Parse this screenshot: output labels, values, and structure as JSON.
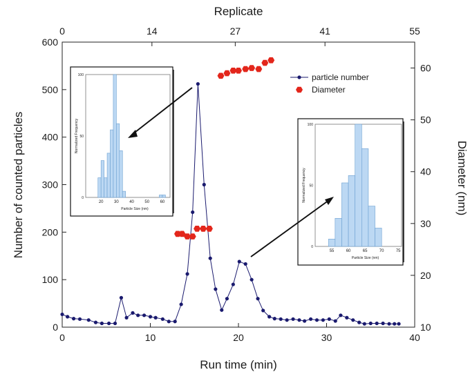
{
  "chart_data": {
    "type": "scatter",
    "xlabel": "Run time (min)",
    "ylabel": "Number of counted particles",
    "x2label": "Replicate",
    "y2label": "Diameter (nm)",
    "xlim": [
      0,
      40
    ],
    "ylim": [
      0,
      600
    ],
    "y2lim": [
      10,
      65
    ],
    "x2lim": [
      0,
      55
    ],
    "x_ticks": [
      0,
      10,
      20,
      30,
      40
    ],
    "y_ticks": [
      0,
      100,
      200,
      300,
      400,
      500,
      600
    ],
    "y2_ticks": [
      10,
      20,
      30,
      40,
      50,
      60
    ],
    "x2_ticks": [
      0,
      14,
      27,
      41,
      55
    ],
    "legend_position": "top-right",
    "grid": false,
    "series": [
      {
        "name": "particle number",
        "color": "#1a1a6e",
        "marker": "circle-line",
        "axis": "left",
        "x": [
          0,
          0.6,
          1.3,
          2.0,
          3.0,
          3.8,
          4.5,
          5.3,
          6.0,
          6.7,
          7.3,
          8.0,
          8.6,
          9.3,
          10.0,
          10.6,
          11.4,
          12.1,
          12.8,
          13.5,
          14.2,
          14.8,
          15.4,
          16.1,
          16.8,
          17.4,
          18.1,
          18.7,
          19.4,
          20.1,
          20.8,
          21.5,
          22.2,
          22.8,
          23.5,
          24.1,
          24.8,
          25.5,
          26.2,
          26.9,
          27.5,
          28.2,
          28.9,
          29.6,
          30.3,
          31.0,
          31.6,
          32.3,
          33.0,
          33.7,
          34.3,
          35.0,
          35.7,
          36.4,
          37.1,
          37.7,
          38.2
        ],
        "values": [
          27,
          22,
          18,
          17,
          15,
          10,
          8,
          8,
          8,
          62,
          20,
          30,
          25,
          25,
          22,
          20,
          17,
          12,
          12,
          48,
          112,
          242,
          512,
          300,
          145,
          80,
          36,
          60,
          90,
          138,
          133,
          100,
          60,
          35,
          22,
          18,
          17,
          15,
          17,
          15,
          13,
          17,
          15,
          15,
          17,
          13,
          25,
          20,
          15,
          10,
          7,
          8,
          8,
          8,
          7,
          7,
          7
        ]
      },
      {
        "name": "Diameter",
        "color": "#e3261b",
        "marker": "hexagon",
        "axis": "right",
        "x": [
          13.1,
          13.6,
          14.2,
          14.8,
          15.3,
          16.0,
          16.7,
          18.0,
          18.7,
          19.4,
          20.0,
          20.8,
          21.5,
          22.3,
          23.0,
          23.7
        ],
        "values": [
          28.0,
          28.0,
          27.5,
          27.5,
          29.0,
          29.0,
          29.0,
          58.5,
          59.0,
          59.5,
          59.5,
          59.8,
          60.0,
          59.8,
          61.0,
          61.5
        ]
      }
    ]
  },
  "insets": [
    {
      "ylabel": "Normalized Frequency",
      "xlabel": "Particle Size (nm)",
      "x_ticks": [
        "20",
        "30",
        "40",
        "50",
        "60"
      ],
      "y_ticks": [
        "0",
        "50",
        "100"
      ],
      "xlim": [
        10,
        65
      ],
      "ylim": [
        0,
        100
      ],
      "bins": [
        {
          "x0": 18,
          "x1": 20,
          "v": 16
        },
        {
          "x0": 20,
          "x1": 22,
          "v": 30
        },
        {
          "x0": 22,
          "x1": 24,
          "v": 16
        },
        {
          "x0": 24,
          "x1": 26,
          "v": 36
        },
        {
          "x0": 26,
          "x1": 28,
          "v": 55
        },
        {
          "x0": 28,
          "x1": 30,
          "v": 100
        },
        {
          "x0": 30,
          "x1": 32,
          "v": 60
        },
        {
          "x0": 32,
          "x1": 34,
          "v": 38
        },
        {
          "x0": 34,
          "x1": 36,
          "v": 5
        },
        {
          "x0": 58,
          "x1": 60,
          "v": 2
        },
        {
          "x0": 60,
          "x1": 62,
          "v": 2
        }
      ]
    },
    {
      "ylabel": "Normalized Frequency",
      "xlabel": "Particle Size (nm)",
      "x_ticks": [
        "55",
        "60",
        "65",
        "70",
        "75"
      ],
      "y_ticks": [
        "0",
        "50",
        "100"
      ],
      "xlim": [
        50,
        76
      ],
      "ylim": [
        0,
        100
      ],
      "bins": [
        {
          "x0": 54,
          "x1": 56,
          "v": 6
        },
        {
          "x0": 56,
          "x1": 58,
          "v": 23
        },
        {
          "x0": 58,
          "x1": 60,
          "v": 52
        },
        {
          "x0": 60,
          "x1": 62,
          "v": 58
        },
        {
          "x0": 62,
          "x1": 64,
          "v": 100
        },
        {
          "x0": 64,
          "x1": 66,
          "v": 80
        },
        {
          "x0": 66,
          "x1": 68,
          "v": 33
        },
        {
          "x0": 68,
          "x1": 70,
          "v": 15
        }
      ]
    }
  ]
}
